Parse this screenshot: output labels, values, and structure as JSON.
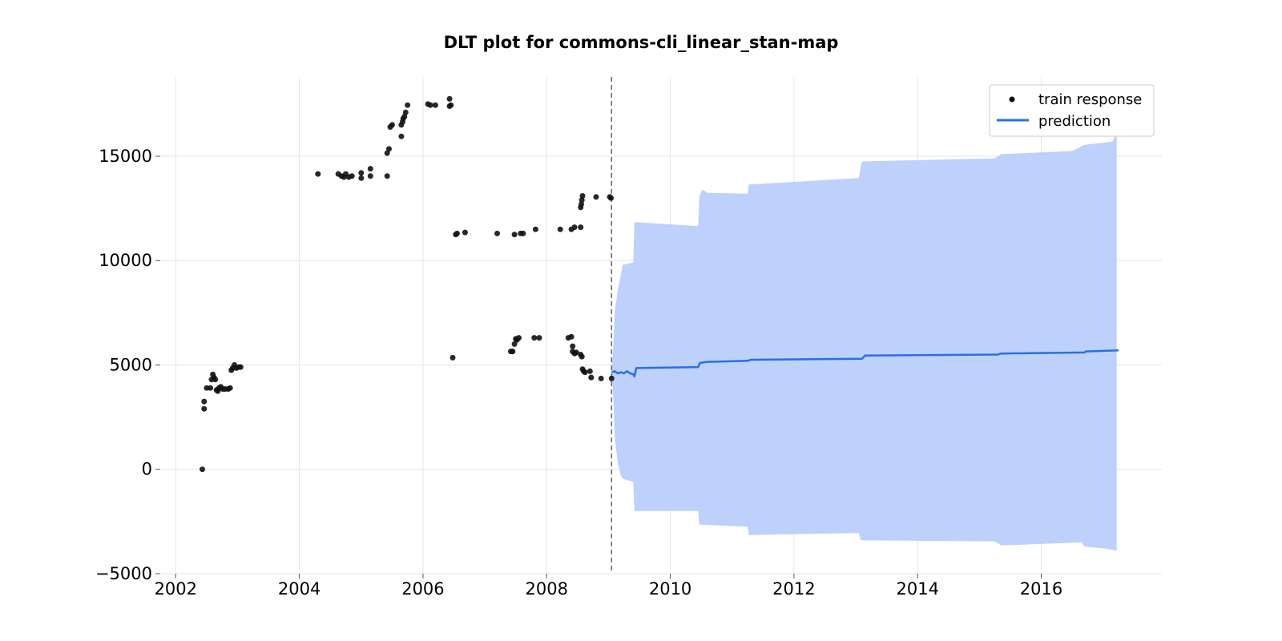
{
  "chart_data": {
    "type": "scatter",
    "title": "DLT plot for commons-cli_linear_stan-map",
    "xlabel": "",
    "ylabel": "",
    "xlim": [
      2001.75,
      2017.95
    ],
    "ylim": [
      -5000,
      18800
    ],
    "x_ticks": [
      2002,
      2004,
      2006,
      2008,
      2010,
      2012,
      2014,
      2016
    ],
    "x_tick_labels": [
      "2002",
      "2004",
      "2006",
      "2008",
      "2010",
      "2012",
      "2014",
      "2016"
    ],
    "y_ticks": [
      -5000,
      0,
      5000,
      10000,
      15000
    ],
    "y_tick_labels": [
      "−5000",
      "0",
      "5000",
      "10000",
      "15000"
    ],
    "grid": true,
    "legend_position": "top-right",
    "train_end_x": 2009.05,
    "colors": {
      "train_points": "#111111",
      "prediction_line": "#2a6ee8",
      "interval_fill": "#bed1fa",
      "divider": "#666666"
    },
    "series": [
      {
        "name": "train response",
        "kind": "scatter",
        "points": [
          [
            2002.43,
            0
          ],
          [
            2002.46,
            2900
          ],
          [
            2002.46,
            3250
          ],
          [
            2002.5,
            3900
          ],
          [
            2002.56,
            3900
          ],
          [
            2002.58,
            4300
          ],
          [
            2002.6,
            4550
          ],
          [
            2002.62,
            4400
          ],
          [
            2002.64,
            4300
          ],
          [
            2002.66,
            3800
          ],
          [
            2002.68,
            3750
          ],
          [
            2002.7,
            3900
          ],
          [
            2002.73,
            3950
          ],
          [
            2002.76,
            3850
          ],
          [
            2002.8,
            3850
          ],
          [
            2002.85,
            3850
          ],
          [
            2002.88,
            3900
          ],
          [
            2002.9,
            4750
          ],
          [
            2002.92,
            4850
          ],
          [
            2002.95,
            5000
          ],
          [
            2002.98,
            4850
          ],
          [
            2003.02,
            4900
          ],
          [
            2003.05,
            4900
          ],
          [
            2004.3,
            14150
          ],
          [
            2004.63,
            14150
          ],
          [
            2004.68,
            14050
          ],
          [
            2004.72,
            14000
          ],
          [
            2004.75,
            14150
          ],
          [
            2004.8,
            14000
          ],
          [
            2004.85,
            14050
          ],
          [
            2005.0,
            14200
          ],
          [
            2005.0,
            13950
          ],
          [
            2005.15,
            14400
          ],
          [
            2005.15,
            14050
          ],
          [
            2005.42,
            14050
          ],
          [
            2005.42,
            15150
          ],
          [
            2005.45,
            15350
          ],
          [
            2005.47,
            16400
          ],
          [
            2005.5,
            16500
          ],
          [
            2005.65,
            15950
          ],
          [
            2005.65,
            16500
          ],
          [
            2005.67,
            16650
          ],
          [
            2005.68,
            16800
          ],
          [
            2005.7,
            16900
          ],
          [
            2005.72,
            17100
          ],
          [
            2005.75,
            17450
          ],
          [
            2006.08,
            17500
          ],
          [
            2006.12,
            17450
          ],
          [
            2006.2,
            17450
          ],
          [
            2006.43,
            17750
          ],
          [
            2006.43,
            17400
          ],
          [
            2006.45,
            17450
          ],
          [
            2006.48,
            5350
          ],
          [
            2006.53,
            11250
          ],
          [
            2006.55,
            11300
          ],
          [
            2006.68,
            11350
          ],
          [
            2007.2,
            11300
          ],
          [
            2007.42,
            5650
          ],
          [
            2007.45,
            5650
          ],
          [
            2007.48,
            6000
          ],
          [
            2007.5,
            6250
          ],
          [
            2007.52,
            6200
          ],
          [
            2007.55,
            6300
          ],
          [
            2007.48,
            11250
          ],
          [
            2007.58,
            11300
          ],
          [
            2007.62,
            11300
          ],
          [
            2007.8,
            6300
          ],
          [
            2007.88,
            6300
          ],
          [
            2007.82,
            11500
          ],
          [
            2008.22,
            11500
          ],
          [
            2008.35,
            6300
          ],
          [
            2008.4,
            6350
          ],
          [
            2008.42,
            5900
          ],
          [
            2008.42,
            5650
          ],
          [
            2008.45,
            5550
          ],
          [
            2008.48,
            5600
          ],
          [
            2008.4,
            11500
          ],
          [
            2008.45,
            11600
          ],
          [
            2008.55,
            11600
          ],
          [
            2008.55,
            5500
          ],
          [
            2008.57,
            5400
          ],
          [
            2008.58,
            4800
          ],
          [
            2008.6,
            4700
          ],
          [
            2008.62,
            4650
          ],
          [
            2008.55,
            12550
          ],
          [
            2008.56,
            12700
          ],
          [
            2008.57,
            12900
          ],
          [
            2008.58,
            13100
          ],
          [
            2008.7,
            4700
          ],
          [
            2008.72,
            4400
          ],
          [
            2008.8,
            13050
          ],
          [
            2008.88,
            4350
          ],
          [
            2009.02,
            13050
          ],
          [
            2009.04,
            13000
          ],
          [
            2009.05,
            4350
          ]
        ]
      },
      {
        "name": "prediction",
        "kind": "line",
        "points": [
          [
            2009.05,
            4650
          ],
          [
            2009.1,
            4700
          ],
          [
            2009.15,
            4600
          ],
          [
            2009.2,
            4650
          ],
          [
            2009.25,
            4600
          ],
          [
            2009.3,
            4700
          ],
          [
            2009.35,
            4600
          ],
          [
            2009.4,
            4550
          ],
          [
            2009.42,
            4450
          ],
          [
            2009.45,
            4850
          ],
          [
            2010.45,
            4900
          ],
          [
            2010.48,
            5100
          ],
          [
            2010.6,
            5150
          ],
          [
            2011.25,
            5200
          ],
          [
            2011.3,
            5250
          ],
          [
            2013.1,
            5300
          ],
          [
            2013.15,
            5450
          ],
          [
            2015.3,
            5500
          ],
          [
            2015.35,
            5550
          ],
          [
            2016.7,
            5600
          ],
          [
            2016.72,
            5650
          ],
          [
            2017.25,
            5700
          ]
        ]
      }
    ],
    "prediction_interval": {
      "upper": [
        [
          2009.05,
          4700
        ],
        [
          2009.08,
          6000
        ],
        [
          2009.1,
          7500
        ],
        [
          2009.15,
          8600
        ],
        [
          2009.2,
          9300
        ],
        [
          2009.23,
          9800
        ],
        [
          2009.4,
          9900
        ],
        [
          2009.42,
          11850
        ],
        [
          2010.45,
          11650
        ],
        [
          2010.47,
          13050
        ],
        [
          2010.52,
          13400
        ],
        [
          2010.6,
          13250
        ],
        [
          2011.25,
          13200
        ],
        [
          2011.27,
          13650
        ],
        [
          2013.05,
          13950
        ],
        [
          2013.08,
          14500
        ],
        [
          2013.1,
          14750
        ],
        [
          2015.25,
          14900
        ],
        [
          2015.35,
          15100
        ],
        [
          2016.5,
          15250
        ],
        [
          2016.7,
          15550
        ],
        [
          2017.15,
          15700
        ],
        [
          2017.22,
          16100
        ]
      ],
      "lower": [
        [
          2009.05,
          4600
        ],
        [
          2009.08,
          3300
        ],
        [
          2009.1,
          1600
        ],
        [
          2009.15,
          300
        ],
        [
          2009.2,
          -300
        ],
        [
          2009.23,
          -450
        ],
        [
          2009.4,
          -600
        ],
        [
          2009.42,
          -2000
        ],
        [
          2010.45,
          -2000
        ],
        [
          2010.47,
          -2650
        ],
        [
          2011.25,
          -2750
        ],
        [
          2011.27,
          -3150
        ],
        [
          2013.05,
          -3050
        ],
        [
          2013.08,
          -3400
        ],
        [
          2015.25,
          -3450
        ],
        [
          2015.35,
          -3650
        ],
        [
          2016.65,
          -3500
        ],
        [
          2016.7,
          -3700
        ],
        [
          2017.05,
          -3800
        ],
        [
          2017.22,
          -3900
        ]
      ]
    }
  }
}
